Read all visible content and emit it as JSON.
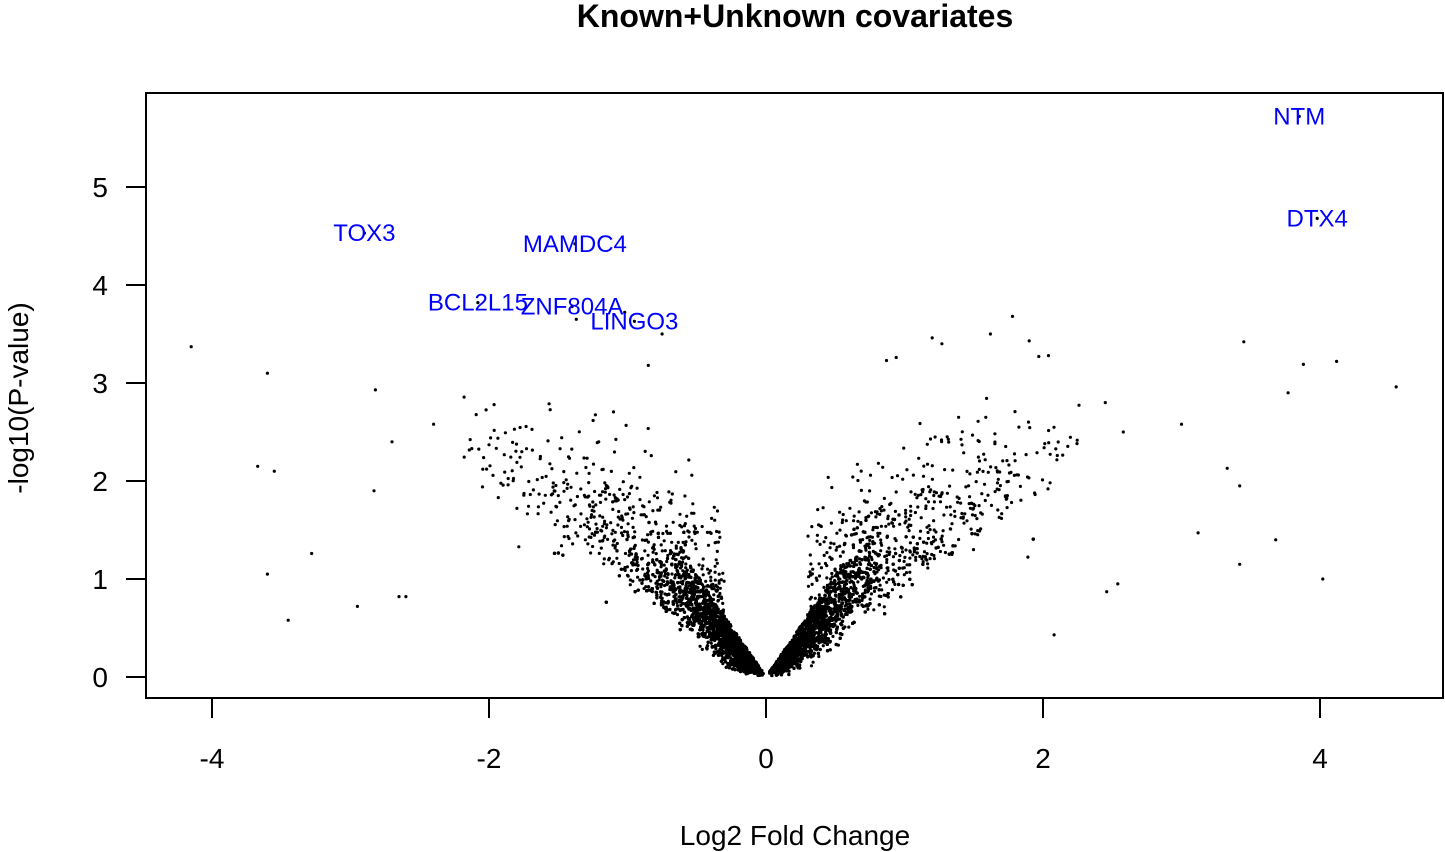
{
  "chart_data": {
    "type": "scatter",
    "title": "Known+Unknown covariates",
    "xlabel": "Log2 Fold Change",
    "ylabel": "-log10(P-value)",
    "xlim": [
      -4.4,
      4.5
    ],
    "ylim": [
      -0.2,
      6.0
    ],
    "x_ticks": [
      -4,
      -2,
      0,
      2,
      4
    ],
    "x_tick_labels": [
      "-4",
      "-2",
      "0",
      "2",
      "4"
    ],
    "y_ticks": [
      0,
      1,
      2,
      3,
      4,
      5
    ],
    "y_tick_labels": [
      "0",
      "1",
      "2",
      "3",
      "4",
      "5"
    ],
    "grid": false,
    "point_color": "#000000",
    "label_color": "#0000ff",
    "labeled_genes": [
      {
        "gene": "NTM",
        "x": 3.85,
        "y": 5.72
      },
      {
        "gene": "DTX4",
        "x": 3.98,
        "y": 4.68
      },
      {
        "gene": "TOX3",
        "x": -2.9,
        "y": 4.53
      },
      {
        "gene": "MAMDC4",
        "x": -1.38,
        "y": 4.42
      },
      {
        "gene": "BCL2L15",
        "x": -2.08,
        "y": 3.82
      },
      {
        "gene": "ZNF804A",
        "x": -1.4,
        "y": 3.78
      },
      {
        "gene": "LINGO3",
        "x": -0.95,
        "y": 3.63
      }
    ],
    "outlier_points": [
      {
        "x": -4.15,
        "y": 3.37
      },
      {
        "x": -3.6,
        "y": 3.1
      },
      {
        "x": -3.67,
        "y": 2.15
      },
      {
        "x": -3.55,
        "y": 2.1
      },
      {
        "x": -3.6,
        "y": 1.05
      },
      {
        "x": -3.28,
        "y": 1.26
      },
      {
        "x": -3.45,
        "y": 0.58
      },
      {
        "x": -2.95,
        "y": 0.72
      },
      {
        "x": -2.82,
        "y": 2.93
      },
      {
        "x": -2.83,
        "y": 1.9
      },
      {
        "x": -2.7,
        "y": 2.4
      },
      {
        "x": -2.4,
        "y": 2.58
      },
      {
        "x": -2.6,
        "y": 0.82
      },
      {
        "x": -2.65,
        "y": 0.82
      },
      {
        "x": -0.75,
        "y": 3.5
      },
      {
        "x": -0.85,
        "y": 3.18
      },
      {
        "x": -1.02,
        "y": 3.72
      },
      {
        "x": -1.37,
        "y": 3.65
      },
      {
        "x": 1.2,
        "y": 3.46
      },
      {
        "x": 1.27,
        "y": 3.4
      },
      {
        "x": 1.62,
        "y": 3.5
      },
      {
        "x": 1.78,
        "y": 3.68
      },
      {
        "x": 1.9,
        "y": 3.43
      },
      {
        "x": 1.97,
        "y": 3.27
      },
      {
        "x": 2.04,
        "y": 3.28
      },
      {
        "x": 0.87,
        "y": 3.23
      },
      {
        "x": 0.94,
        "y": 3.26
      },
      {
        "x": 3.45,
        "y": 3.42
      },
      {
        "x": 3.88,
        "y": 3.19
      },
      {
        "x": 4.12,
        "y": 3.22
      },
      {
        "x": 4.55,
        "y": 2.96
      },
      {
        "x": 3.77,
        "y": 2.9
      },
      {
        "x": 3.33,
        "y": 2.13
      },
      {
        "x": 3.42,
        "y": 1.95
      },
      {
        "x": 3.0,
        "y": 2.58
      },
      {
        "x": 3.68,
        "y": 1.4
      },
      {
        "x": 3.42,
        "y": 1.15
      },
      {
        "x": 4.02,
        "y": 1.0
      },
      {
        "x": 3.12,
        "y": 1.47
      },
      {
        "x": 2.45,
        "y": 2.8
      },
      {
        "x": 2.58,
        "y": 2.5
      },
      {
        "x": 2.46,
        "y": 0.87
      },
      {
        "x": 2.54,
        "y": 0.95
      },
      {
        "x": 2.08,
        "y": 0.43
      }
    ],
    "cloud_description": "dense V-shaped cloud of ~10000 genes centered at x=0, y=0"
  }
}
